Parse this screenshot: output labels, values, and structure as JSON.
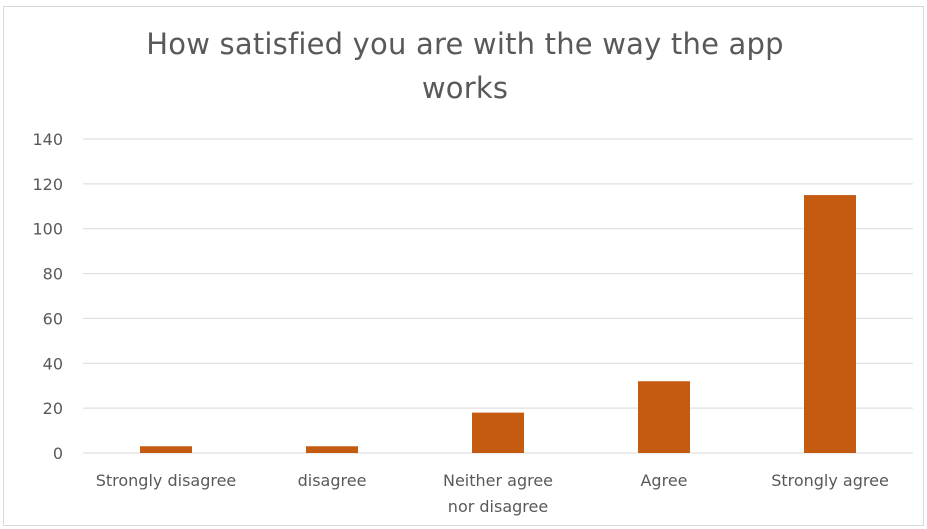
{
  "chart_data": {
    "type": "bar",
    "title": "How satisfied you are with the way the app works",
    "title_lines": [
      "How satisfied you are with the way the app",
      "works"
    ],
    "categories": [
      "Strongly disagree",
      "disagree",
      "Neither agree nor disagree",
      "Agree",
      "Strongly agree"
    ],
    "category_lines": [
      [
        "Strongly disagree"
      ],
      [
        "disagree"
      ],
      [
        "Neither agree",
        "nor disagree"
      ],
      [
        "Agree"
      ],
      [
        "Strongly agree"
      ]
    ],
    "values": [
      3,
      3,
      18,
      32,
      115
    ],
    "ylim": [
      0,
      140
    ],
    "yticks": [
      0,
      20,
      40,
      60,
      80,
      100,
      120,
      140
    ],
    "grid": true,
    "legend": "none",
    "bar_color": "#c55a11",
    "grid_color": "#d9d9d9",
    "text_color": "#595959"
  }
}
